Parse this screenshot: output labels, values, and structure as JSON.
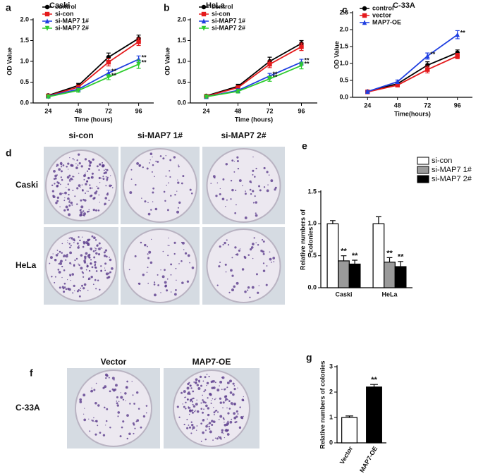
{
  "chart_data": [
    {
      "type": "line",
      "panel": "a",
      "title": "Caski",
      "xlabel": "Time (hours)",
      "ylabel": "OD Value",
      "categories": [
        "24",
        "48",
        "72",
        "96"
      ],
      "ylim": [
        0,
        2.0
      ],
      "yticks": [
        {
          "value": 0,
          "label": "0.0"
        },
        0.5,
        {
          "value": 1,
          "label": "1.0"
        },
        1.5,
        {
          "value": 2,
          "label": "2.0"
        }
      ],
      "legend": "upper left",
      "series": [
        {
          "name": "control",
          "color": "#000000",
          "marker": "circle",
          "values": [
            0.18,
            0.42,
            1.1,
            1.55
          ],
          "errors": [
            0.03,
            0.05,
            0.1,
            0.08
          ],
          "annotations": [
            null,
            null,
            null,
            null
          ]
        },
        {
          "name": "si-con",
          "color": "#e41a1c",
          "marker": "square",
          "values": [
            0.17,
            0.38,
            0.98,
            1.47
          ],
          "errors": [
            0.03,
            0.04,
            0.09,
            0.09
          ],
          "annotations": [
            null,
            null,
            null,
            null
          ]
        },
        {
          "name": "si-MAP7 1#",
          "color": "#1f3fe0",
          "marker": "triangle",
          "values": [
            0.16,
            0.33,
            0.72,
            1.05
          ],
          "errors": [
            0.03,
            0.04,
            0.07,
            0.08
          ],
          "annotations": [
            null,
            null,
            "**",
            "**"
          ]
        },
        {
          "name": "si-MAP7 2#",
          "color": "#2ecc2e",
          "marker": "triangle-down",
          "values": [
            0.15,
            0.3,
            0.62,
            0.93
          ],
          "errors": [
            0.03,
            0.04,
            0.06,
            0.1
          ],
          "annotations": [
            null,
            null,
            "**",
            "**"
          ]
        }
      ]
    },
    {
      "type": "line",
      "panel": "b",
      "title": "HeLa",
      "xlabel": "Time (hours)",
      "ylabel": "OD Value",
      "categories": [
        "24",
        "48",
        "72",
        "96"
      ],
      "ylim": [
        0,
        2.0
      ],
      "yticks": [
        {
          "value": 0,
          "label": "0.0"
        },
        0.5,
        {
          "value": 1,
          "label": "1.0"
        },
        1.5,
        {
          "value": 2,
          "label": "2.0"
        }
      ],
      "legend": "upper left",
      "series": [
        {
          "name": "control",
          "color": "#000000",
          "marker": "circle",
          "values": [
            0.17,
            0.4,
            1.0,
            1.43
          ],
          "errors": [
            0.03,
            0.05,
            0.1,
            0.07
          ],
          "annotations": [
            null,
            null,
            null,
            null
          ]
        },
        {
          "name": "si-con",
          "color": "#e41a1c",
          "marker": "square",
          "values": [
            0.16,
            0.37,
            0.93,
            1.35
          ],
          "errors": [
            0.03,
            0.04,
            0.08,
            0.09
          ],
          "annotations": [
            null,
            null,
            null,
            null
          ]
        },
        {
          "name": "si-MAP7 1#",
          "color": "#1f3fe0",
          "marker": "triangle",
          "values": [
            0.15,
            0.3,
            0.65,
            0.98
          ],
          "errors": [
            0.03,
            0.04,
            0.06,
            0.07
          ],
          "annotations": [
            null,
            null,
            "**",
            "**"
          ]
        },
        {
          "name": "si-MAP7 2#",
          "color": "#2ecc2e",
          "marker": "triangle-down",
          "values": [
            0.15,
            0.28,
            0.58,
            0.9
          ],
          "errors": [
            0.03,
            0.04,
            0.06,
            0.08
          ],
          "annotations": [
            null,
            null,
            "**",
            "**"
          ]
        }
      ]
    },
    {
      "type": "line",
      "panel": "c",
      "title": "C-33A",
      "xlabel": "Time(hours)",
      "ylabel": "OD Value",
      "categories": [
        "24",
        "48",
        "72",
        "96"
      ],
      "ylim": [
        0,
        2.5
      ],
      "yticks": [
        {
          "value": 0,
          "label": "0.0"
        },
        0.5,
        {
          "value": 1,
          "label": "1.0"
        },
        1.5,
        {
          "value": 2,
          "label": "2.0"
        },
        2.5
      ],
      "legend": "upper left",
      "series": [
        {
          "name": "control",
          "color": "#000000",
          "marker": "circle",
          "values": [
            0.17,
            0.4,
            0.95,
            1.32
          ],
          "errors": [
            0.02,
            0.05,
            0.1,
            0.08
          ],
          "annotations": [
            null,
            null,
            null,
            null
          ]
        },
        {
          "name": "vector",
          "color": "#e41a1c",
          "marker": "square",
          "values": [
            0.16,
            0.36,
            0.82,
            1.22
          ],
          "errors": [
            0.02,
            0.04,
            0.1,
            0.08
          ],
          "annotations": [
            null,
            null,
            null,
            null
          ]
        },
        {
          "name": "MAP7-OE",
          "color": "#1f3fe0",
          "marker": "triangle",
          "values": [
            0.17,
            0.46,
            1.22,
            1.85
          ],
          "errors": [
            0.02,
            0.05,
            0.09,
            0.12
          ],
          "annotations": [
            null,
            null,
            "**",
            "**"
          ]
        }
      ]
    },
    {
      "type": "bar",
      "panel": "e",
      "ylabel": [
        "Relative numbers of",
        "colonies"
      ],
      "categories": [
        "Caski",
        "HeLa"
      ],
      "ylim": [
        0,
        1.5
      ],
      "yticks": [
        {
          "value": 0,
          "label": "0.0"
        },
        0.5,
        {
          "value": 1,
          "label": "1.0"
        },
        1.5
      ],
      "legend": "upper right",
      "series": [
        {
          "name": "si-con",
          "color": "#ffffff",
          "values": [
            1.0,
            1.0
          ],
          "errors": [
            0.05,
            0.11
          ],
          "annotations": [
            null,
            null
          ]
        },
        {
          "name": "si-MAP7 1#",
          "color": "#9a9a9a",
          "values": [
            0.42,
            0.4
          ],
          "errors": [
            0.08,
            0.07
          ],
          "annotations": [
            "**",
            "**"
          ]
        },
        {
          "name": "si-MAP7 2#",
          "color": "#000000",
          "values": [
            0.37,
            0.33
          ],
          "errors": [
            0.06,
            0.08
          ],
          "annotations": [
            "**",
            "**"
          ]
        }
      ]
    },
    {
      "type": "bar",
      "panel": "g",
      "ylabel": [
        "Relative numbers of colonies"
      ],
      "categories": [
        "Vector",
        "MAP7-OE"
      ],
      "ylim": [
        0,
        3
      ],
      "yticks": [
        0,
        1,
        2,
        3
      ],
      "xtick_rotation": -60,
      "values": [
        1.0,
        2.2
      ],
      "colors": [
        "#ffffff",
        "#000000"
      ],
      "errors": [
        0.06,
        0.1
      ],
      "annotations": [
        null,
        "**"
      ]
    }
  ],
  "photos": [
    {
      "panel": "d",
      "columns": [
        "si-con",
        "si-MAP7 1#",
        "si-MAP7 2#"
      ],
      "rows": [
        "Caski",
        "HeLa"
      ]
    },
    {
      "panel": "f",
      "columns": [
        "Vector",
        "MAP7-OE"
      ],
      "rows": [
        "C-33A"
      ]
    }
  ]
}
